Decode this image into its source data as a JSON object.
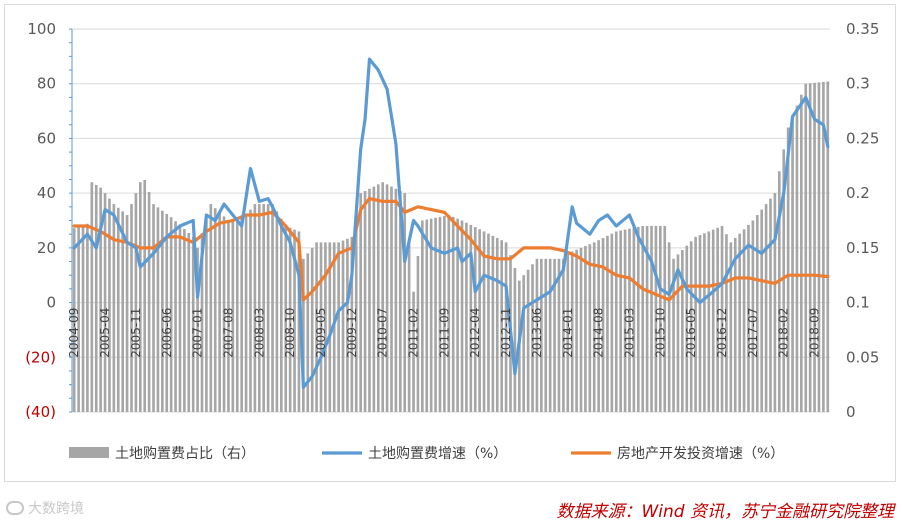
{
  "chart_data": {
    "type": "bar+line",
    "title": "",
    "y_left": {
      "min": -40,
      "max": 100,
      "step": 20,
      "tick_labels": [
        "(40)",
        "(20)",
        "0",
        "20",
        "40",
        "60",
        "80",
        "100"
      ]
    },
    "y_right": {
      "min": 0,
      "max": 0.35,
      "step": 0.05,
      "tick_labels": [
        "0",
        "0.05",
        "0.1",
        "0.15",
        "0.2",
        "0.25",
        "0.3",
        "0.35"
      ]
    },
    "x_start": "2004-09",
    "x_end": "2018-12",
    "x_tick_labels": [
      "2004-09",
      "2005-04",
      "2005-11",
      "2006-06",
      "2007-01",
      "2007-08",
      "2008-03",
      "2008-10",
      "2009-05",
      "2009-12",
      "2010-07",
      "2011-02",
      "2011-09",
      "2012-04",
      "2012-11",
      "2013-06",
      "2014-01",
      "2014-08",
      "2015-03",
      "2015-10",
      "2016-05",
      "2016-12",
      "2017-07",
      "2018-02",
      "2018-09"
    ],
    "grid": true,
    "legend_position": "bottom",
    "series": [
      {
        "name": "土地购置费占比（右）",
        "type": "bar",
        "axis": "right",
        "color": "#a6a6a6",
        "anchors": [
          [
            "2004-09",
            0.168
          ],
          [
            "2004-12",
            0.172
          ],
          [
            "2005-01",
            0.21
          ],
          [
            "2005-03",
            0.205
          ],
          [
            "2005-06",
            0.19
          ],
          [
            "2005-09",
            0.18
          ],
          [
            "2005-12",
            0.21
          ],
          [
            "2006-01",
            0.212
          ],
          [
            "2006-03",
            0.19
          ],
          [
            "2006-07",
            0.178
          ],
          [
            "2006-12",
            0.16
          ],
          [
            "2007-01",
            0.15
          ],
          [
            "2007-04",
            0.19
          ],
          [
            "2007-08",
            0.175
          ],
          [
            "2007-12",
            0.18
          ],
          [
            "2008-02",
            0.19
          ],
          [
            "2008-06",
            0.19
          ],
          [
            "2008-09",
            0.17
          ],
          [
            "2008-12",
            0.165
          ],
          [
            "2009-01",
            0.14
          ],
          [
            "2009-04",
            0.155
          ],
          [
            "2009-09",
            0.155
          ],
          [
            "2009-12",
            0.16
          ],
          [
            "2010-02",
            0.2
          ],
          [
            "2010-07",
            0.21
          ],
          [
            "2010-12",
            0.2
          ],
          [
            "2011-02",
            0.11
          ],
          [
            "2011-04",
            0.175
          ],
          [
            "2011-10",
            0.18
          ],
          [
            "2012-01",
            0.175
          ],
          [
            "2012-06",
            0.165
          ],
          [
            "2012-11",
            0.155
          ],
          [
            "2013-02",
            0.12
          ],
          [
            "2013-06",
            0.14
          ],
          [
            "2013-12",
            0.14
          ],
          [
            "2014-01",
            0.145
          ],
          [
            "2014-07",
            0.155
          ],
          [
            "2014-12",
            0.165
          ],
          [
            "2015-06",
            0.17
          ],
          [
            "2015-11",
            0.17
          ],
          [
            "2016-01",
            0.14
          ],
          [
            "2016-06",
            0.16
          ],
          [
            "2016-12",
            0.17
          ],
          [
            "2017-02",
            0.155
          ],
          [
            "2017-07",
            0.175
          ],
          [
            "2017-12",
            0.2
          ],
          [
            "2018-03",
            0.26
          ],
          [
            "2018-07",
            0.3
          ],
          [
            "2018-12",
            0.302
          ]
        ]
      },
      {
        "name": "土地购置费增速（%）",
        "type": "line",
        "axis": "left",
        "color": "#5b9bd5",
        "anchors": [
          [
            "2004-09",
            20
          ],
          [
            "2004-12",
            25
          ],
          [
            "2005-02",
            20
          ],
          [
            "2005-04",
            34
          ],
          [
            "2005-06",
            32
          ],
          [
            "2005-09",
            22
          ],
          [
            "2005-11",
            20
          ],
          [
            "2005-12",
            13
          ],
          [
            "2006-03",
            18
          ],
          [
            "2006-06",
            24
          ],
          [
            "2006-09",
            28
          ],
          [
            "2006-12",
            30
          ],
          [
            "2007-01",
            2
          ],
          [
            "2007-03",
            32
          ],
          [
            "2007-05",
            30
          ],
          [
            "2007-07",
            36
          ],
          [
            "2007-09",
            32
          ],
          [
            "2007-11",
            28
          ],
          [
            "2008-01",
            49
          ],
          [
            "2008-03",
            37
          ],
          [
            "2008-05",
            38
          ],
          [
            "2008-06",
            35
          ],
          [
            "2008-08",
            28
          ],
          [
            "2008-10",
            22
          ],
          [
            "2008-12",
            10
          ],
          [
            "2009-01",
            -31
          ],
          [
            "2009-03",
            -27
          ],
          [
            "2009-05",
            -20
          ],
          [
            "2009-07",
            -12
          ],
          [
            "2009-09",
            -3
          ],
          [
            "2009-11",
            0
          ],
          [
            "2009-12",
            10
          ],
          [
            "2010-02",
            56
          ],
          [
            "2010-03",
            67
          ],
          [
            "2010-04",
            89
          ],
          [
            "2010-06",
            85
          ],
          [
            "2010-08",
            78
          ],
          [
            "2010-10",
            58
          ],
          [
            "2010-12",
            15
          ],
          [
            "2011-02",
            30
          ],
          [
            "2011-03",
            28
          ],
          [
            "2011-06",
            20
          ],
          [
            "2011-09",
            18
          ],
          [
            "2011-12",
            20
          ],
          [
            "2012-01",
            15
          ],
          [
            "2012-03",
            18
          ],
          [
            "2012-04",
            4
          ],
          [
            "2012-06",
            10
          ],
          [
            "2012-09",
            8
          ],
          [
            "2012-11",
            6
          ],
          [
            "2013-01",
            -26
          ],
          [
            "2013-03",
            -2
          ],
          [
            "2013-06",
            1
          ],
          [
            "2013-09",
            4
          ],
          [
            "2013-12",
            12
          ],
          [
            "2014-02",
            35
          ],
          [
            "2014-03",
            29
          ],
          [
            "2014-06",
            25
          ],
          [
            "2014-08",
            30
          ],
          [
            "2014-10",
            32
          ],
          [
            "2014-12",
            28
          ],
          [
            "2015-03",
            32
          ],
          [
            "2015-05",
            24
          ],
          [
            "2015-08",
            15
          ],
          [
            "2015-10",
            5
          ],
          [
            "2015-12",
            3
          ],
          [
            "2016-02",
            12
          ],
          [
            "2016-04",
            5
          ],
          [
            "2016-07",
            0
          ],
          [
            "2016-10",
            4
          ],
          [
            "2016-12",
            7
          ],
          [
            "2017-03",
            16
          ],
          [
            "2017-06",
            21
          ],
          [
            "2017-09",
            18
          ],
          [
            "2017-12",
            23
          ],
          [
            "2018-02",
            40
          ],
          [
            "2018-04",
            68
          ],
          [
            "2018-07",
            75
          ],
          [
            "2018-09",
            67
          ],
          [
            "2018-11",
            65
          ],
          [
            "2018-12",
            57
          ]
        ]
      },
      {
        "name": "房地产开发投资增速（%）",
        "type": "line",
        "axis": "left",
        "color": "#ed7d31",
        "anchors": [
          [
            "2004-09",
            28
          ],
          [
            "2004-12",
            28
          ],
          [
            "2005-03",
            26
          ],
          [
            "2005-06",
            23
          ],
          [
            "2005-09",
            22
          ],
          [
            "2005-12",
            20
          ],
          [
            "2006-03",
            20
          ],
          [
            "2006-06",
            24
          ],
          [
            "2006-09",
            24
          ],
          [
            "2006-12",
            22
          ],
          [
            "2007-03",
            26
          ],
          [
            "2007-06",
            29
          ],
          [
            "2007-09",
            30
          ],
          [
            "2007-12",
            32
          ],
          [
            "2008-03",
            32
          ],
          [
            "2008-06",
            33
          ],
          [
            "2008-09",
            28
          ],
          [
            "2008-12",
            22
          ],
          [
            "2009-01",
            1
          ],
          [
            "2009-03",
            4
          ],
          [
            "2009-06",
            10
          ],
          [
            "2009-09",
            18
          ],
          [
            "2009-12",
            20
          ],
          [
            "2010-02",
            34
          ],
          [
            "2010-04",
            38
          ],
          [
            "2010-07",
            37
          ],
          [
            "2010-10",
            37
          ],
          [
            "2010-12",
            33
          ],
          [
            "2011-03",
            35
          ],
          [
            "2011-06",
            34
          ],
          [
            "2011-09",
            33
          ],
          [
            "2011-12",
            28
          ],
          [
            "2012-03",
            23
          ],
          [
            "2012-06",
            17
          ],
          [
            "2012-09",
            16
          ],
          [
            "2012-12",
            16
          ],
          [
            "2013-03",
            20
          ],
          [
            "2013-06",
            20
          ],
          [
            "2013-09",
            20
          ],
          [
            "2013-12",
            19
          ],
          [
            "2014-03",
            17
          ],
          [
            "2014-06",
            14
          ],
          [
            "2014-09",
            13
          ],
          [
            "2014-12",
            10
          ],
          [
            "2015-03",
            9
          ],
          [
            "2015-06",
            5
          ],
          [
            "2015-09",
            3
          ],
          [
            "2015-12",
            1
          ],
          [
            "2016-03",
            6
          ],
          [
            "2016-06",
            6
          ],
          [
            "2016-09",
            6
          ],
          [
            "2016-12",
            7
          ],
          [
            "2017-03",
            9
          ],
          [
            "2017-06",
            9
          ],
          [
            "2017-09",
            8
          ],
          [
            "2017-12",
            7
          ],
          [
            "2018-03",
            10
          ],
          [
            "2018-06",
            10
          ],
          [
            "2018-09",
            10
          ],
          [
            "2018-12",
            9.5
          ]
        ]
      }
    ]
  },
  "source_text": "数据来源：Wind 资讯，苏宁金融研究院整理",
  "watermark_text": "大数跨境"
}
